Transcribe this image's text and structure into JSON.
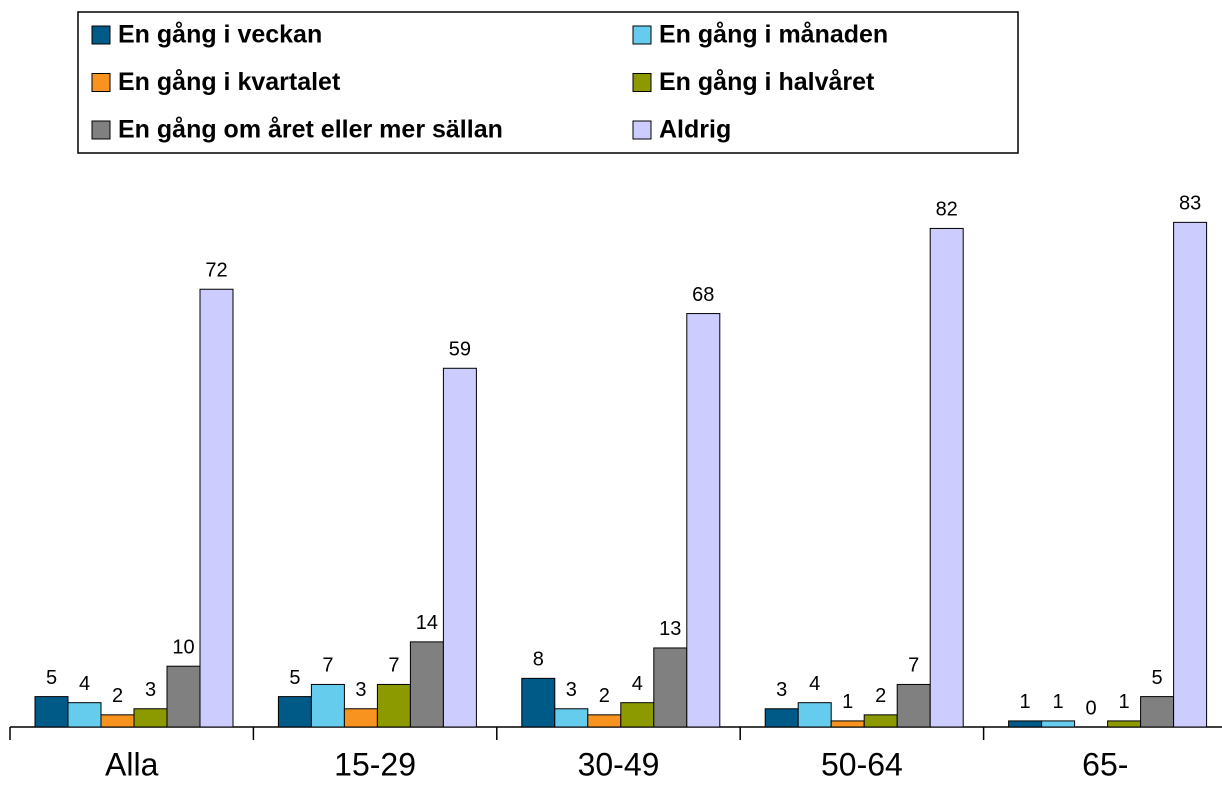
{
  "chart_data": {
    "type": "bar",
    "categories": [
      "Alla",
      "15-29",
      "30-49",
      "50-64",
      "65-"
    ],
    "series": [
      {
        "name": "En gång i veckan",
        "color": "#005a87",
        "values": [
          5,
          5,
          8,
          3,
          1
        ]
      },
      {
        "name": "En gång i månaden",
        "color": "#66ccee",
        "values": [
          4,
          7,
          3,
          4,
          1
        ]
      },
      {
        "name": "En gång i kvartalet",
        "color": "#f7931e",
        "values": [
          2,
          3,
          2,
          1,
          0
        ]
      },
      {
        "name": "En gång i halvåret",
        "color": "#8c9a00",
        "values": [
          3,
          7,
          4,
          2,
          1
        ]
      },
      {
        "name": "En gång om året eller mer sällan",
        "color": "#808080",
        "values": [
          10,
          14,
          13,
          7,
          5
        ]
      },
      {
        "name": "Aldrig",
        "color": "#ccccff",
        "values": [
          72,
          59,
          68,
          82,
          83
        ]
      }
    ]
  }
}
